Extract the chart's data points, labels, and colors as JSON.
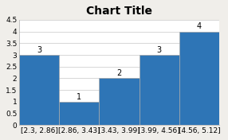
{
  "title": "Chart Title",
  "categories": [
    "[2.3, 2.86]",
    "[2.86, 3.43]",
    "[3.43, 3.99]",
    "[3.99, 4.56]",
    "[4.56, 5.12]"
  ],
  "values": [
    3,
    1,
    2,
    3,
    4
  ],
  "bar_color": "#2E75B6",
  "ylim": [
    0,
    4.5
  ],
  "yticks": [
    0,
    0.5,
    1.0,
    1.5,
    2.0,
    2.5,
    3.0,
    3.5,
    4.0,
    4.5
  ],
  "title_fontsize": 10,
  "label_fontsize": 6.5,
  "tick_fontsize": 6.5,
  "bar_label_fontsize": 7,
  "figure_facecolor": "#f0eeea",
  "axes_facecolor": "#ffffff",
  "grid_color": "#c8c8c8"
}
